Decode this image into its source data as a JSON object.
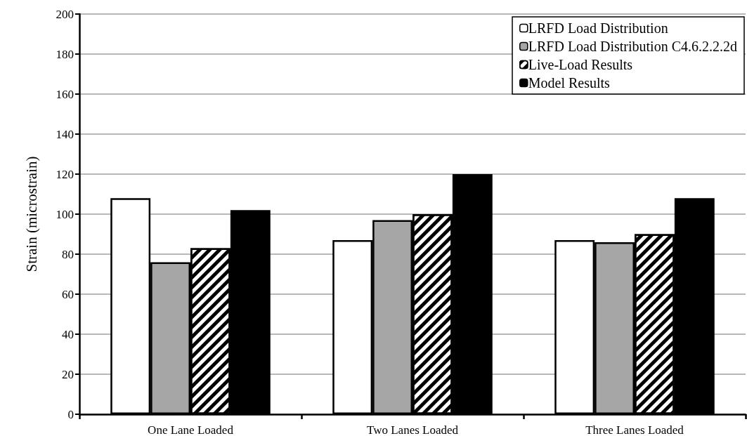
{
  "chart_data": {
    "type": "bar",
    "ylabel": "Strain (microstrain)",
    "categories": [
      "One Lane Loaded",
      "Two Lanes Loaded",
      "Three Lanes Loaded"
    ],
    "series": [
      {
        "name": "LRFD Load Distribution",
        "color": "#ffffff",
        "values": [
          108,
          87,
          87
        ]
      },
      {
        "name": "LRFD Load Distribution C4.6.2.2.2d",
        "color": "#a6a6a6",
        "values": [
          76,
          97,
          86
        ]
      },
      {
        "name": "Live-Load Results",
        "color": "#ffffff",
        "values": [
          83,
          100,
          90
        ]
      },
      {
        "name": "Model Results",
        "color": "#000000",
        "values": [
          102,
          120,
          108
        ]
      }
    ],
    "ylim": [
      0,
      200
    ],
    "yticks": [
      0,
      20,
      40,
      60,
      80,
      100,
      120,
      140,
      160,
      180,
      200
    ],
    "grid": "y",
    "legend": "top right"
  }
}
